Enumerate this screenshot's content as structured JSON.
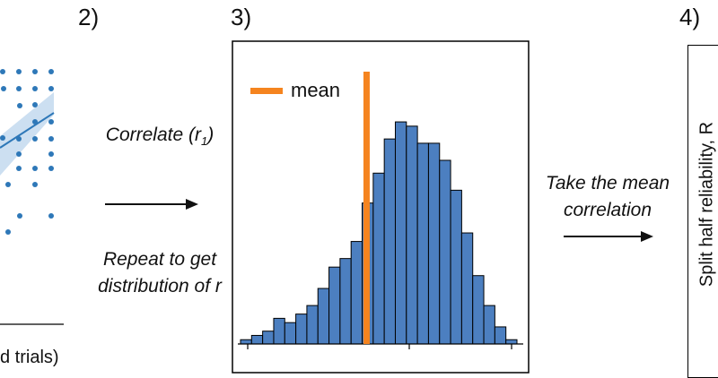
{
  "panels": {
    "p2": {
      "label": "2)"
    },
    "p3": {
      "label": "3)"
    },
    "p4": {
      "label": "4)"
    }
  },
  "left_panel": {
    "xlabel_fragment": "d trials)"
  },
  "step_correlate": {
    "text_main": "Correlate (r",
    "text_sub": "1",
    "text_end": ")",
    "repeat_line1": "Repeat to get",
    "repeat_line2_main": "distribution of ",
    "repeat_line2_var": "r"
  },
  "step_mean": {
    "line1": "Take the mean",
    "line2": "correlation"
  },
  "panel4": {
    "ylabel": "Split half reliability, R"
  },
  "colors": {
    "bar_fill": "#4c7fc0",
    "bar_edge": "#000000",
    "mean_line": "#f5841f",
    "scatter": "#2e78b8",
    "fit_line": "#2e78b8",
    "ci_band": "#c6dcef"
  },
  "chart_data": {
    "type": "histogram",
    "title": "",
    "xlabel": "",
    "ylabel": "",
    "legend": [
      {
        "name": "mean",
        "color": "#f5841f"
      }
    ],
    "legend_position": "top-left",
    "bin_heights": [
      1,
      2,
      3,
      6,
      5,
      7,
      9,
      13,
      18,
      20,
      24,
      33,
      40,
      48,
      52,
      51,
      47,
      47,
      43,
      36,
      26,
      16,
      9,
      4,
      1
    ],
    "mean_bin_position": 11.4,
    "ylim": [
      0,
      56
    ]
  }
}
